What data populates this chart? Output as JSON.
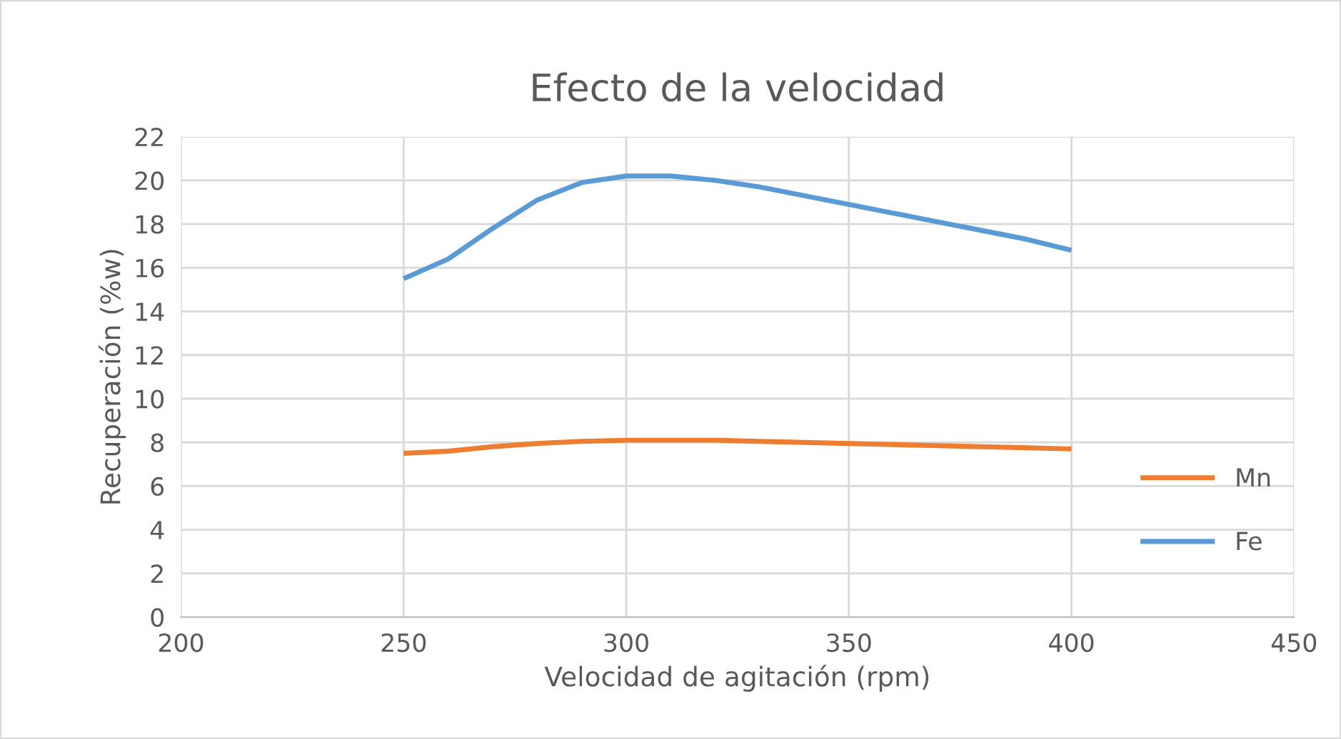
{
  "chart_data": {
    "type": "line",
    "title": "Efecto de la velocidad",
    "xlabel": "Velocidad de agitación (rpm)",
    "ylabel": "Recuperación (%w)",
    "x": [
      250,
      260,
      270,
      280,
      290,
      300,
      310,
      320,
      330,
      340,
      350,
      360,
      370,
      380,
      390,
      400
    ],
    "series": [
      {
        "name": "Mn",
        "color": "#ed7d31",
        "values": [
          7.5,
          7.6,
          7.8,
          7.95,
          8.05,
          8.1,
          8.1,
          8.1,
          8.05,
          8.0,
          7.95,
          7.9,
          7.85,
          7.8,
          7.75,
          7.7
        ]
      },
      {
        "name": "Fe",
        "color": "#5b9bd5",
        "values": [
          15.5,
          16.4,
          17.8,
          19.1,
          19.9,
          20.2,
          20.2,
          20.0,
          19.7,
          19.3,
          18.9,
          18.5,
          18.1,
          17.7,
          17.3,
          16.8
        ]
      }
    ],
    "xlim": [
      200,
      450
    ],
    "xticks": [
      200,
      250,
      300,
      350,
      400,
      450
    ],
    "ylim": [
      0,
      22
    ],
    "yticks": [
      0,
      2,
      4,
      6,
      8,
      10,
      12,
      14,
      16,
      18,
      20,
      22
    ],
    "grid": true,
    "legend": "right",
    "marker": "none",
    "line_style": "solid"
  }
}
